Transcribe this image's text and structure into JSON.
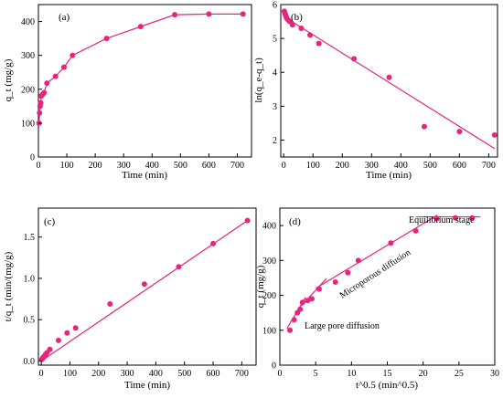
{
  "accent_color": "#e8247c",
  "chart_data": [
    {
      "type": "line",
      "panel_label": "(a)",
      "xlabel": "Time (min)",
      "ylabel": "q_t (mg/g)",
      "xlim": [
        0,
        750
      ],
      "ylim": [
        0,
        450
      ],
      "x_ticks": [
        0,
        100,
        200,
        300,
        400,
        500,
        600,
        700
      ],
      "y_ticks": [
        0,
        100,
        200,
        300,
        400
      ],
      "series": [
        {
          "x": [
            2,
            4,
            6,
            8,
            10,
            15,
            20,
            30,
            60,
            90,
            120,
            240,
            360,
            480,
            600,
            720
          ],
          "y": [
            100,
            130,
            150,
            160,
            180,
            185,
            190,
            218,
            238,
            265,
            300,
            350,
            385,
            420,
            422,
            422
          ]
        }
      ]
    },
    {
      "type": "scatter",
      "panel_label": "(b)",
      "xlabel": "Time (min)",
      "ylabel": "ln(q_e-q_t)",
      "xlim": [
        -10,
        730
      ],
      "ylim": [
        1.5,
        6
      ],
      "x_ticks": [
        0,
        100,
        200,
        300,
        400,
        500,
        600,
        700
      ],
      "y_ticks": [
        2,
        3,
        4,
        5,
        6
      ],
      "series": [
        {
          "x": [
            2,
            4,
            6,
            8,
            10,
            15,
            20,
            30,
            60,
            90,
            120,
            240,
            360,
            480,
            600,
            720
          ],
          "y": [
            5.8,
            5.75,
            5.7,
            5.65,
            5.6,
            5.55,
            5.5,
            5.4,
            5.3,
            5.1,
            4.85,
            4.4,
            3.85,
            2.4,
            2.25,
            2.15
          ]
        }
      ],
      "fit_line": {
        "x": [
          0,
          720
        ],
        "y": [
          5.65,
          1.75
        ]
      }
    },
    {
      "type": "scatter",
      "panel_label": "(c)",
      "xlabel": "Time (min)",
      "ylabel": "t/q_t (min/(mg/g)",
      "xlim": [
        -10,
        750
      ],
      "ylim": [
        -0.05,
        1.85
      ],
      "x_ticks": [
        0,
        100,
        200,
        300,
        400,
        500,
        600,
        700
      ],
      "y_ticks": [
        0.0,
        0.5,
        1.0,
        1.5
      ],
      "series": [
        {
          "x": [
            2,
            4,
            6,
            8,
            10,
            15,
            20,
            30,
            60,
            90,
            120,
            240,
            360,
            480,
            600,
            720
          ],
          "y": [
            0.02,
            0.03,
            0.04,
            0.05,
            0.055,
            0.08,
            0.1,
            0.14,
            0.25,
            0.34,
            0.4,
            0.69,
            0.93,
            1.14,
            1.42,
            1.7
          ]
        }
      ],
      "fit_line": {
        "x": [
          0,
          720
        ],
        "y": [
          0.0,
          1.7
        ]
      }
    },
    {
      "type": "scatter",
      "panel_label": "(d)",
      "xlabel": "t^0.5 (min^0.5)",
      "ylabel": "q_t (mg/g)",
      "xlim": [
        0,
        30
      ],
      "ylim": [
        0,
        450
      ],
      "x_ticks": [
        0,
        5,
        10,
        15,
        20,
        25,
        30
      ],
      "y_ticks": [
        0,
        100,
        200,
        300,
        400
      ],
      "series": [
        {
          "x": [
            1.41,
            2,
            2.45,
            2.83,
            3.16,
            3.87,
            4.47,
            5.48,
            7.75,
            9.49,
            10.95,
            15.49,
            18.97,
            21.91,
            24.49,
            26.83
          ],
          "y": [
            100,
            130,
            150,
            160,
            180,
            185,
            190,
            218,
            238,
            265,
            300,
            350,
            385,
            420,
            422,
            422
          ]
        }
      ],
      "fit_lines": [
        {
          "x": [
            1.0,
            3.6
          ],
          "y": [
            105,
            195
          ]
        },
        {
          "x": [
            3.0,
            6.5
          ],
          "y": [
            170,
            248
          ]
        },
        {
          "x": [
            5.0,
            22.0
          ],
          "y": [
            220,
            430
          ]
        },
        {
          "x": [
            19.0,
            28.0
          ],
          "y": [
            425,
            425
          ]
        }
      ],
      "annotations": [
        {
          "text": "Large pore diffusion"
        },
        {
          "text": "Microporous diffusion"
        },
        {
          "text": "Equilibrium stage"
        }
      ]
    }
  ]
}
